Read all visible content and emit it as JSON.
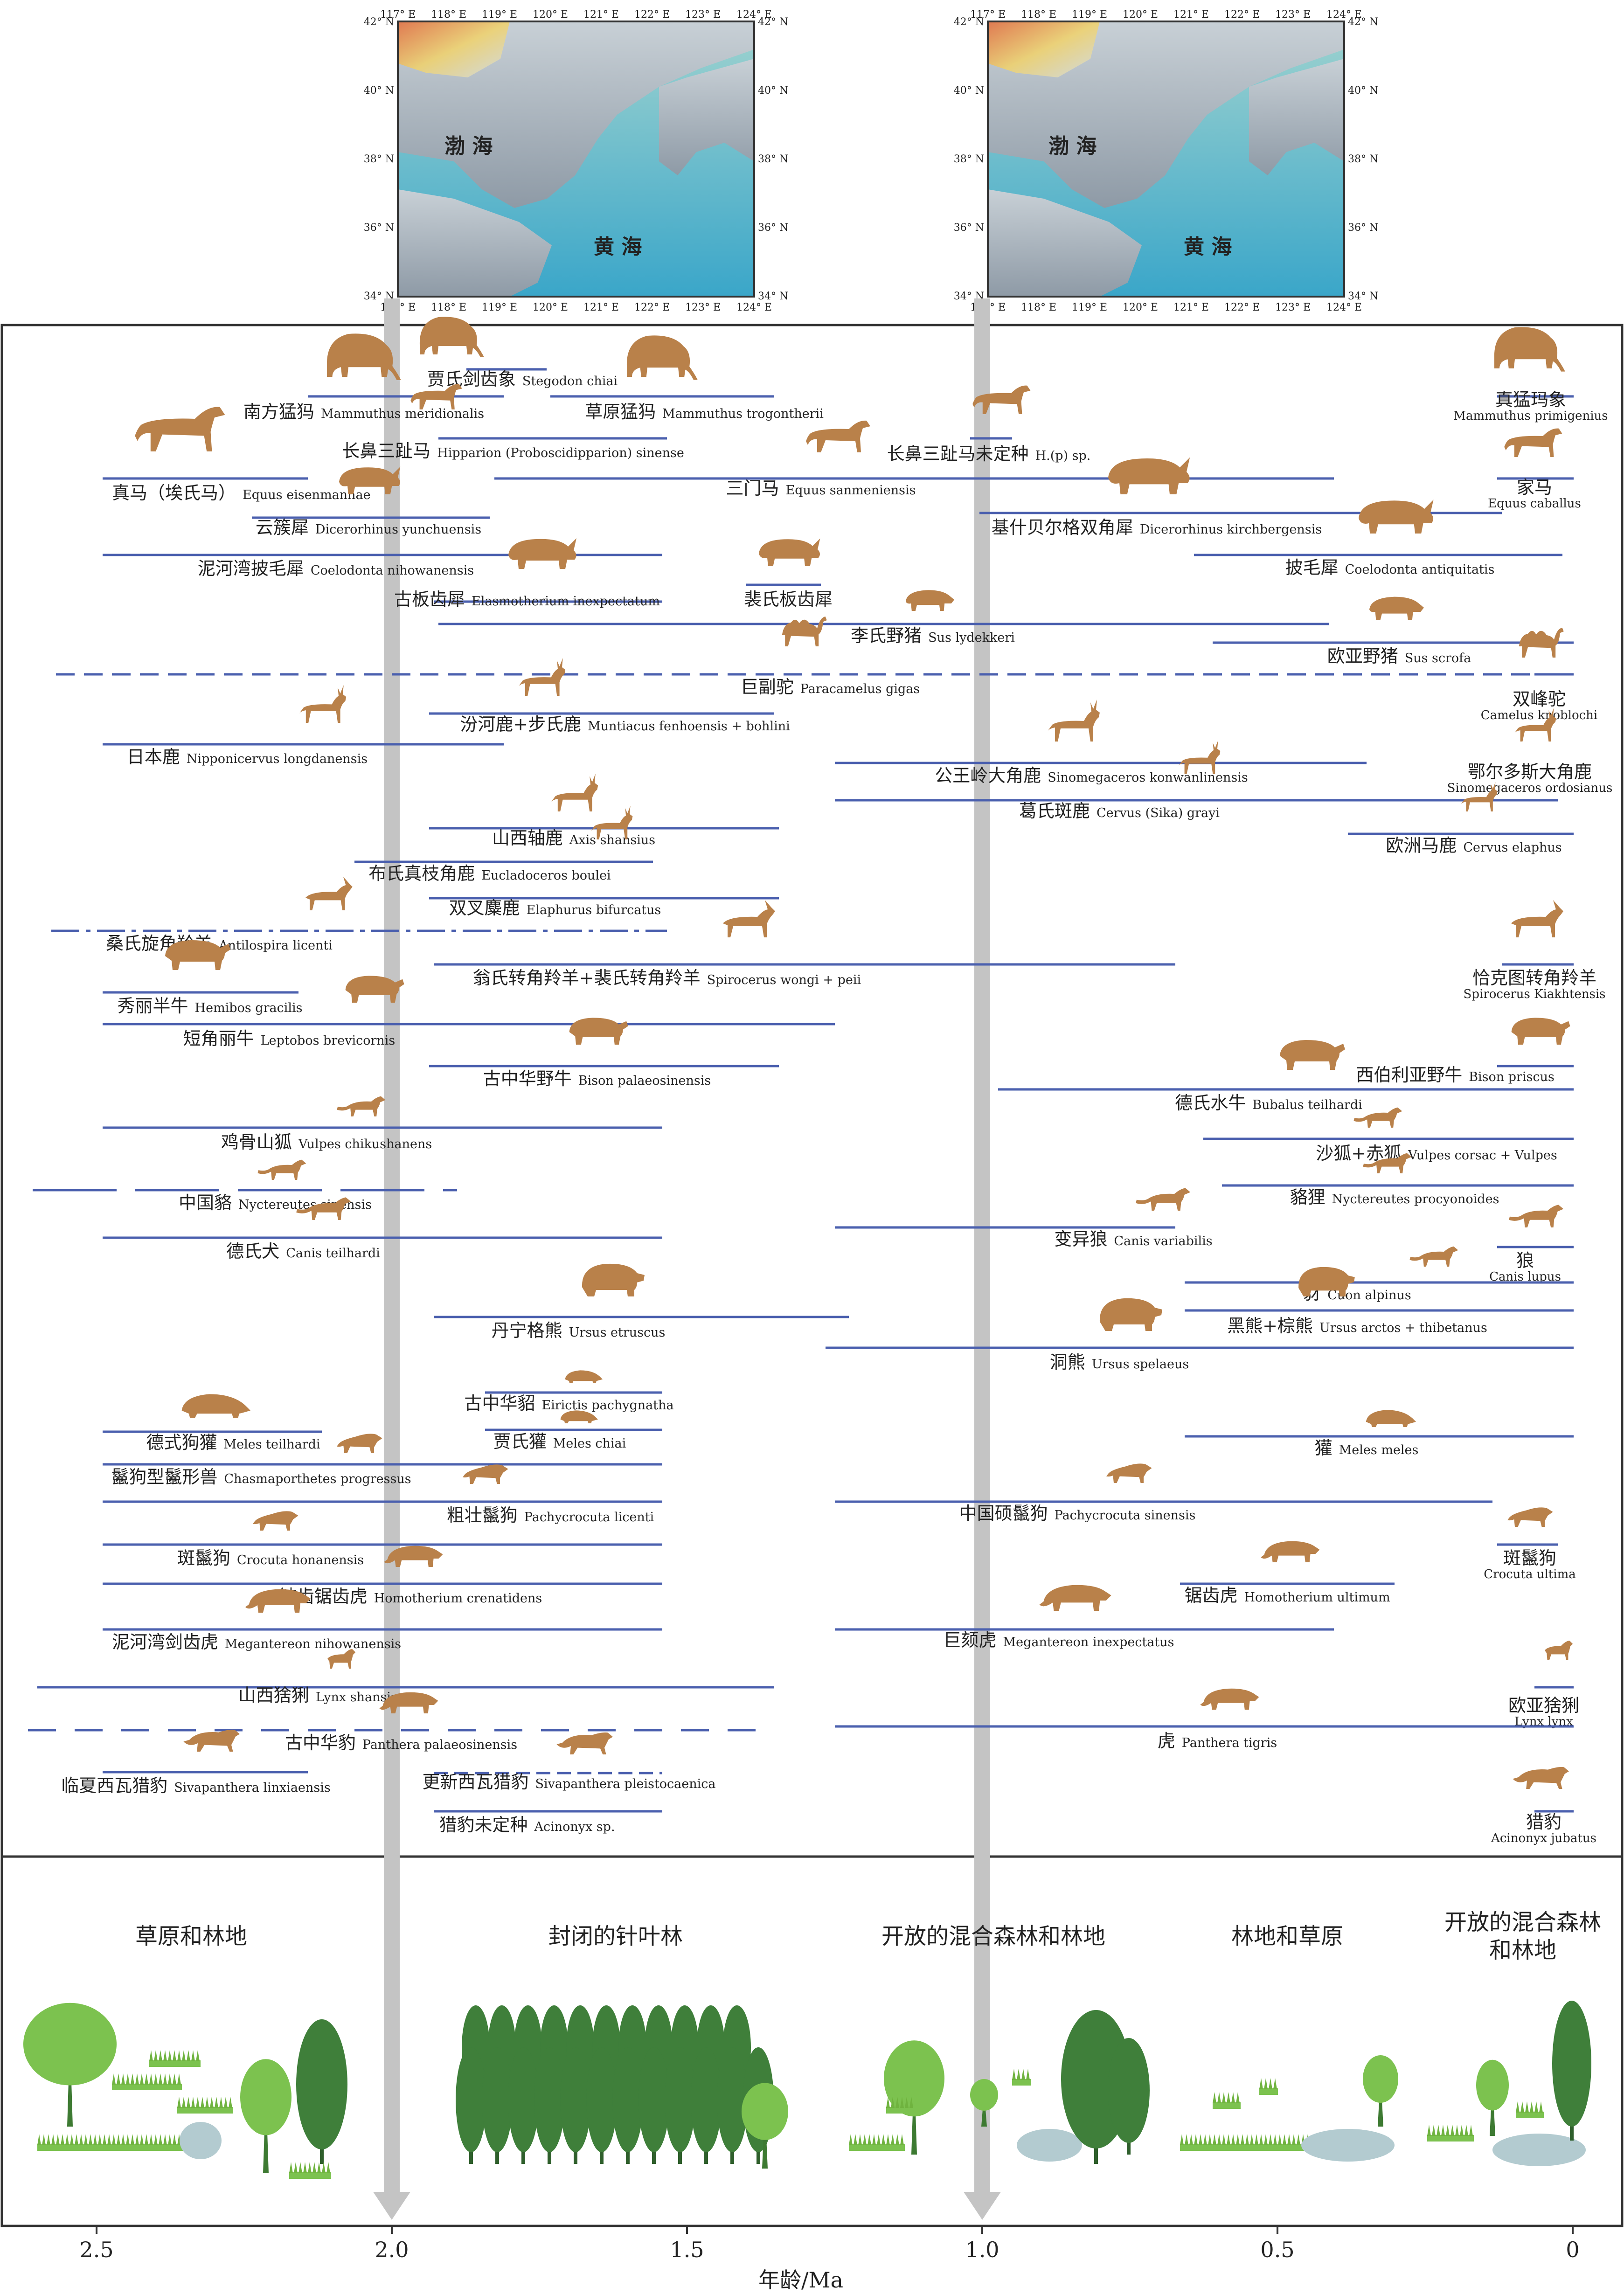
{
  "maps": [
    {
      "lon_ticks": [
        "117° E",
        "118° E",
        "119° E",
        "120° E",
        "121° E",
        "122° E",
        "123° E",
        "124° E"
      ],
      "lat_ticks": [
        "42° N",
        "40° N",
        "38° N",
        "36° N",
        "34° N"
      ],
      "sea_labels": [
        "渤 海",
        "黄 海"
      ]
    },
    {
      "lon_ticks": [
        "117° E",
        "118° E",
        "119° E",
        "120° E",
        "121° E",
        "122° E",
        "123° E",
        "124° E"
      ],
      "lat_ticks": [
        "42° N",
        "40° N",
        "38° N",
        "36° N",
        "34° N"
      ],
      "sea_labels": [
        "渤 海",
        "黄 海"
      ]
    }
  ],
  "axis": {
    "title": "年龄/Ma",
    "ticks": [
      {
        "value": 2.5,
        "label": "2.5"
      },
      {
        "value": 2.0,
        "label": "2.0"
      },
      {
        "value": 1.5,
        "label": "1.5"
      },
      {
        "value": 1.0,
        "label": "1.0"
      },
      {
        "value": 0.5,
        "label": "0.5"
      },
      {
        "value": 0.0,
        "label": "0"
      }
    ],
    "domain": [
      2.6,
      0
    ],
    "markers": [
      2.0,
      1.0
    ]
  },
  "colors": {
    "range_line": "#4a5fae",
    "animal": "#b9814a",
    "marker": "#c4c4c4",
    "frame": "#333333",
    "tree_dark": "#3f7f3a",
    "tree_light": "#7cc24f",
    "water": "#b3cbd0"
  },
  "species": [
    {
      "cn": "贾氏剑齿象",
      "latin": "Stegodon chiai"
    },
    {
      "cn": "南方猛犸",
      "latin": "Mammuthus meridionalis"
    },
    {
      "cn": "草原猛犸",
      "latin": "Mammuthus trogontherii"
    },
    {
      "cn": "真猛玛象",
      "latin": "Mammuthus primigenius"
    },
    {
      "cn": "长鼻三趾马",
      "latin": "Hipparion (Proboscidipparion) sinense"
    },
    {
      "cn": "长鼻三趾马未定种",
      "latin": "H.(p) sp."
    },
    {
      "cn": "真马（埃氏马）",
      "latin": "Equus eisenmannae"
    },
    {
      "cn": "三门马",
      "latin": "Equus sanmeniensis"
    },
    {
      "cn": "家马",
      "latin": "Equus caballus"
    },
    {
      "cn": "云簇犀",
      "latin": "Dicerorhinus yunchuensis"
    },
    {
      "cn": "基什贝尔格双角犀",
      "latin": "Dicerorhinus kirchbergensis"
    },
    {
      "cn": "泥河湾披毛犀",
      "latin": "Coelodonta nihowanensis"
    },
    {
      "cn": "披毛犀",
      "latin": "Coelodonta antiquitatis"
    },
    {
      "cn": "古板齿犀",
      "latin": "Elasmotherium inexpectatum"
    },
    {
      "cn": "裴氏板齿犀",
      "latin": ""
    },
    {
      "cn": "李氏野猪",
      "latin": "Sus lydekkeri"
    },
    {
      "cn": "欧亚野猪",
      "latin": "Sus scrofa"
    },
    {
      "cn": "巨副驼",
      "latin": "Paracamelus gigas"
    },
    {
      "cn": "双峰驼",
      "latin": "Camelus knoblochi"
    },
    {
      "cn": "汾河鹿+步氏鹿",
      "latin": "Muntiacus fenhoensis + bohlini"
    },
    {
      "cn": "日本鹿",
      "latin": "Nipponicervus longdanensis"
    },
    {
      "cn": "公王岭大角鹿",
      "latin": "Sinomegaceros konwanlinensis"
    },
    {
      "cn": "鄂尔多斯大角鹿",
      "latin": "Sinomegaceros ordosianus"
    },
    {
      "cn": "葛氏斑鹿",
      "latin": "Cervus (Sika) grayi"
    },
    {
      "cn": "山西轴鹿",
      "latin": "Axis shansius"
    },
    {
      "cn": "欧洲马鹿",
      "latin": "Cervus elaphus"
    },
    {
      "cn": "布氏真枝角鹿",
      "latin": "Eucladoceros boulei"
    },
    {
      "cn": "双叉麋鹿",
      "latin": "Elaphurus bifurcatus"
    },
    {
      "cn": "桑氏旋角羚羊",
      "latin": "Antilospira licenti"
    },
    {
      "cn": "翁氏转角羚羊+裴氏转角羚羊",
      "latin": "Spirocerus wongi + peii"
    },
    {
      "cn": "恰克图转角羚羊",
      "latin": "Spirocerus Kiakhtensis"
    },
    {
      "cn": "秀丽半牛",
      "latin": "Hemibos gracilis"
    },
    {
      "cn": "短角丽牛",
      "latin": "Leptobos brevicornis"
    },
    {
      "cn": "古中华野牛",
      "latin": "Bison palaeosinensis"
    },
    {
      "cn": "西伯利亚野牛",
      "latin": "Bison priscus"
    },
    {
      "cn": "德氏水牛",
      "latin": "Bubalus teilhardi"
    },
    {
      "cn": "鸡骨山狐",
      "latin": "Vulpes chikushanens"
    },
    {
      "cn": "沙狐+赤狐",
      "latin": "Vulpes corsac + Vulpes"
    },
    {
      "cn": "中国貉",
      "latin": "Nyctereutes sinensis"
    },
    {
      "cn": "貉狸",
      "latin": "Nyctereutes procyonoides"
    },
    {
      "cn": "德氏犬",
      "latin": "Canis teilhardi"
    },
    {
      "cn": "变异狼",
      "latin": "Canis variabilis"
    },
    {
      "cn": "狼",
      "latin": "Canis lupus"
    },
    {
      "cn": "豺",
      "latin": "Cuon alpinus"
    },
    {
      "cn": "丹宁格熊",
      "latin": "Ursus etruscus"
    },
    {
      "cn": "黑熊+棕熊",
      "latin": "Ursus arctos + thibetanus"
    },
    {
      "cn": "洞熊",
      "latin": "Ursus spelaeus"
    },
    {
      "cn": "古中华貂",
      "latin": "Eirictis pachygnatha"
    },
    {
      "cn": "贾氏獾",
      "latin": "Meles chiai"
    },
    {
      "cn": "德式狗獾",
      "latin": "Meles teilhardi"
    },
    {
      "cn": "獾",
      "latin": "Meles meles"
    },
    {
      "cn": "鬣狗型鬣形兽",
      "latin": "Chasmaporthetes progressus"
    },
    {
      "cn": "粗壮鬣狗",
      "latin": "Pachycrocuta licenti"
    },
    {
      "cn": "中国硕鬣狗",
      "latin": "Pachycrocuta sinensis"
    },
    {
      "cn": "斑鬣狗",
      "latin": "Crocuta honanensis"
    },
    {
      "cn": "斑鬣狗",
      "latin": "Crocuta ultima"
    },
    {
      "cn": "钝齿锯齿虎",
      "latin": "Homotherium crenatidens"
    },
    {
      "cn": "锯齿虎",
      "latin": "Homotherium ultimum"
    },
    {
      "cn": "泥河湾剑齿虎",
      "latin": "Megantereon nihowanensis"
    },
    {
      "cn": "巨颏虎",
      "latin": "Megantereon inexpectatus"
    },
    {
      "cn": "山西猞猁",
      "latin": "Lynx shansius"
    },
    {
      "cn": "欧亚猞猁",
      "latin": "Lynx lynx"
    },
    {
      "cn": "古中华豹",
      "latin": "Panthera palaeosinensis"
    },
    {
      "cn": "虎",
      "latin": "Panthera tigris"
    },
    {
      "cn": "临夏西瓦猎豹",
      "latin": "Sivapanthera linxiaensis"
    },
    {
      "cn": "更新西瓦猎豹",
      "latin": "Sivapanthera pleistocaenica"
    },
    {
      "cn": "猎豹未定种",
      "latin": "Acinonyx sp."
    },
    {
      "cn": "猎豹",
      "latin": "Acinonyx jubatus"
    }
  ],
  "habitats": [
    "草原和林地",
    "封闭的针叶林",
    "开放的混合森林和林地",
    "林地和草原",
    "开放的混合森林\n和林地"
  ]
}
